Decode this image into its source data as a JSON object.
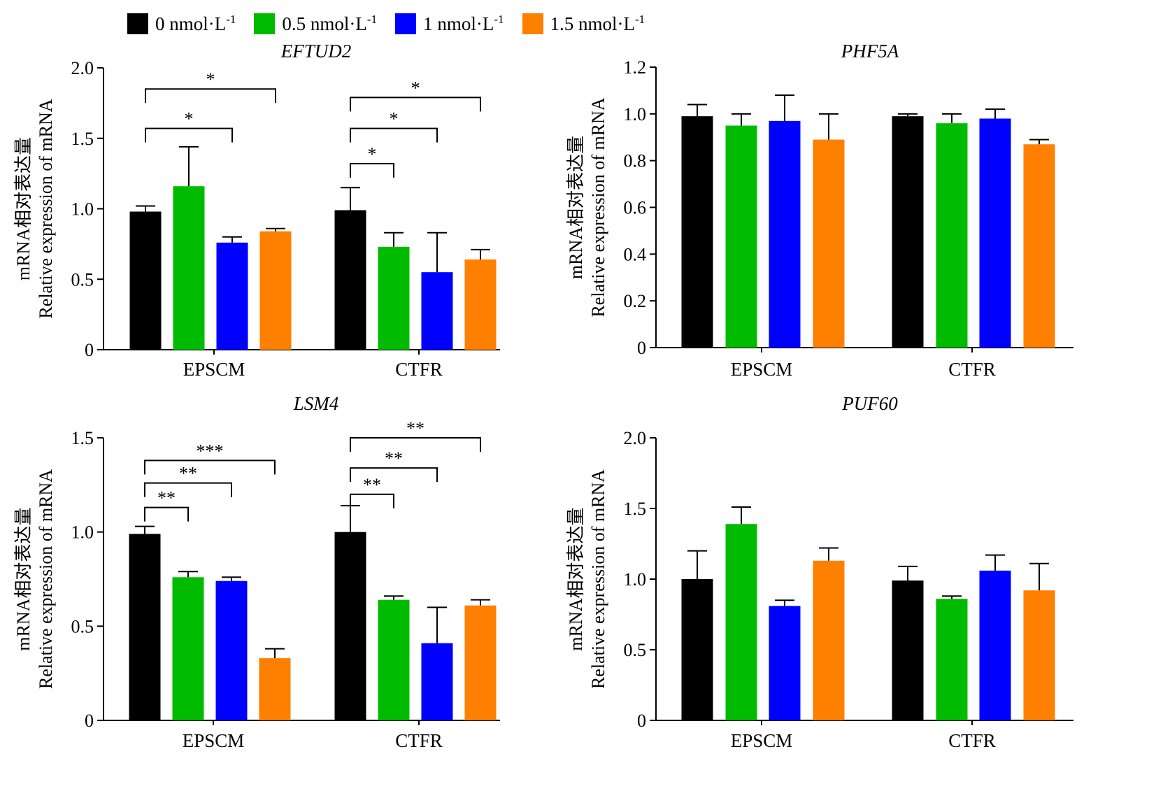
{
  "legend": [
    {
      "base": "0 nmol·L",
      "exp": "-1",
      "color": "#000000"
    },
    {
      "base": "0.5 nmol·L",
      "exp": "-1",
      "color": "#00BB00"
    },
    {
      "base": "1 nmol·L",
      "exp": "-1",
      "color": "#0000FF"
    },
    {
      "base": "1.5 nmol·L",
      "exp": "-1",
      "color": "#FF7F00"
    }
  ],
  "chart_data": [
    {
      "type": "bar",
      "title": "EFTUD2",
      "ylabel_zh": "mRNA相对表达量",
      "ylabel_en": "Relative expression of mRNA",
      "categories": [
        "EPSCM",
        "CTFR"
      ],
      "ylim": [
        0,
        2.0
      ],
      "yticks": [
        0,
        0.5,
        1.0,
        1.5,
        2.0
      ],
      "ytick_labels": [
        "0",
        "0.5",
        "1.0",
        "1.5",
        "2.0"
      ],
      "series": [
        {
          "name": "0 nmol·L-1",
          "values": [
            0.98,
            0.99
          ],
          "errors": [
            0.04,
            0.16
          ]
        },
        {
          "name": "0.5 nmol·L-1",
          "values": [
            1.16,
            0.73
          ],
          "errors": [
            0.28,
            0.1
          ]
        },
        {
          "name": "1 nmol·L-1",
          "values": [
            0.76,
            0.55
          ],
          "errors": [
            0.04,
            0.28
          ]
        },
        {
          "name": "1.5 nmol·L-1",
          "values": [
            0.84,
            0.64
          ],
          "errors": [
            0.02,
            0.07
          ]
        }
      ],
      "significance": [
        {
          "group": 0,
          "from": 0,
          "to": 2,
          "label": "*",
          "y": 1.57
        },
        {
          "group": 0,
          "from": 0,
          "to": 3,
          "label": "*",
          "y": 1.85
        },
        {
          "group": 1,
          "from": 0,
          "to": 1,
          "label": "*",
          "y": 1.32
        },
        {
          "group": 1,
          "from": 0,
          "to": 2,
          "label": "*",
          "y": 1.57
        },
        {
          "group": 1,
          "from": 0,
          "to": 3,
          "label": "*",
          "y": 1.79
        }
      ]
    },
    {
      "type": "bar",
      "title": "PHF5A",
      "ylabel_zh": "mRNA相对表达量",
      "ylabel_en": "Relative expression of mRNA",
      "categories": [
        "EPSCM",
        "CTFR"
      ],
      "ylim": [
        0,
        1.2
      ],
      "yticks": [
        0,
        0.2,
        0.4,
        0.6,
        0.8,
        1.0,
        1.2
      ],
      "ytick_labels": [
        "0",
        "0.2",
        "0.4",
        "0.6",
        "0.8",
        "1.0",
        "1.2"
      ],
      "series": [
        {
          "name": "0 nmol·L-1",
          "values": [
            0.99,
            0.99
          ],
          "errors": [
            0.05,
            0.01
          ]
        },
        {
          "name": "0.5 nmol·L-1",
          "values": [
            0.95,
            0.96
          ],
          "errors": [
            0.05,
            0.04
          ]
        },
        {
          "name": "1 nmol·L-1",
          "values": [
            0.97,
            0.98
          ],
          "errors": [
            0.11,
            0.04
          ]
        },
        {
          "name": "1.5 nmol·L-1",
          "values": [
            0.89,
            0.87
          ],
          "errors": [
            0.11,
            0.02
          ]
        }
      ],
      "significance": []
    },
    {
      "type": "bar",
      "title": "LSM4",
      "ylabel_zh": "mRNA相对表达量",
      "ylabel_en": "Relative expression of mRNA",
      "categories": [
        "EPSCM",
        "CTFR"
      ],
      "ylim": [
        0,
        1.5
      ],
      "yticks": [
        0,
        0.5,
        1.0,
        1.5
      ],
      "ytick_labels": [
        "0",
        "0.5",
        "1.0",
        "1.5"
      ],
      "series": [
        {
          "name": "0 nmol·L-1",
          "values": [
            0.99,
            1.0
          ],
          "errors": [
            0.04,
            0.14
          ]
        },
        {
          "name": "0.5 nmol·L-1",
          "values": [
            0.76,
            0.64
          ],
          "errors": [
            0.03,
            0.02
          ]
        },
        {
          "name": "1 nmol·L-1",
          "values": [
            0.74,
            0.41
          ],
          "errors": [
            0.02,
            0.19
          ]
        },
        {
          "name": "1.5 nmol·L-1",
          "values": [
            0.33,
            0.61
          ],
          "errors": [
            0.05,
            0.03
          ]
        }
      ],
      "significance": [
        {
          "group": 0,
          "from": 0,
          "to": 1,
          "label": "**",
          "y": 1.13
        },
        {
          "group": 0,
          "from": 0,
          "to": 2,
          "label": "**",
          "y": 1.26
        },
        {
          "group": 0,
          "from": 0,
          "to": 3,
          "label": "***",
          "y": 1.38
        },
        {
          "group": 1,
          "from": 0,
          "to": 1,
          "label": "**",
          "y": 1.2
        },
        {
          "group": 1,
          "from": 0,
          "to": 2,
          "label": "**",
          "y": 1.34
        },
        {
          "group": 1,
          "from": 0,
          "to": 3,
          "label": "**",
          "y": 1.5
        }
      ]
    },
    {
      "type": "bar",
      "title": "PUF60",
      "ylabel_zh": "mRNA相对表达量",
      "ylabel_en": "Relative expression of mRNA",
      "categories": [
        "EPSCM",
        "CTFR"
      ],
      "ylim": [
        0,
        2.0
      ],
      "yticks": [
        0,
        0.5,
        1.0,
        1.5,
        2.0
      ],
      "ytick_labels": [
        "0",
        "0.5",
        "1.0",
        "1.5",
        "2.0"
      ],
      "series": [
        {
          "name": "0 nmol·L-1",
          "values": [
            1.0,
            0.99
          ],
          "errors": [
            0.2,
            0.1
          ]
        },
        {
          "name": "0.5 nmol·L-1",
          "values": [
            1.39,
            0.86
          ],
          "errors": [
            0.12,
            0.02
          ]
        },
        {
          "name": "1 nmol·L-1",
          "values": [
            0.81,
            1.06
          ],
          "errors": [
            0.04,
            0.11
          ]
        },
        {
          "name": "1.5 nmol·L-1",
          "values": [
            1.13,
            0.92
          ],
          "errors": [
            0.09,
            0.19
          ]
        }
      ],
      "significance": []
    }
  ]
}
